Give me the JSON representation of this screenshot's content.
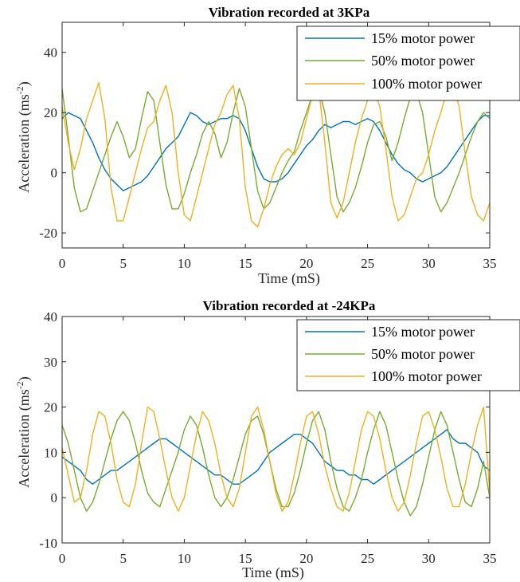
{
  "chart_data": [
    {
      "type": "line",
      "title": "Vibration recorded at 3KPa",
      "xlabel": "Time (mS)",
      "ylabel": "Acceleration (ms",
      "ylabel_sup": "-2",
      "ylabel_close": ")",
      "xlim": [
        0,
        35
      ],
      "ylim": [
        -25,
        50
      ],
      "xticks": [
        0,
        5,
        10,
        15,
        20,
        25,
        30,
        35
      ],
      "xtick_labels": [
        "0",
        "5",
        "10",
        "15",
        "20",
        "25",
        "30",
        "35"
      ],
      "yticks": [
        -20,
        0,
        20,
        40
      ],
      "ytick_labels": [
        "-20",
        "0",
        "20",
        "40"
      ],
      "grid": false,
      "legend_position": "top-right",
      "series": [
        {
          "name": "15% motor power",
          "color": "#0072BD",
          "x": [
            0,
            0.5,
            1,
            1.5,
            2,
            2.5,
            3,
            3.5,
            4,
            4.5,
            5,
            5.5,
            6,
            6.5,
            7,
            7.5,
            8,
            8.5,
            9,
            9.5,
            10,
            10.5,
            11,
            11.5,
            12,
            12.5,
            13,
            13.5,
            14,
            14.5,
            15,
            15.5,
            16,
            16.5,
            17,
            17.5,
            18,
            18.5,
            19,
            19.5,
            20,
            20.5,
            21,
            21.5,
            22,
            22.5,
            23,
            23.5,
            24,
            24.5,
            25,
            25.5,
            26,
            26.5,
            27,
            27.5,
            28,
            28.5,
            29,
            29.5,
            30,
            30.5,
            31,
            31.5,
            32,
            32.5,
            33,
            33.5,
            34,
            34.5,
            35
          ],
          "y": [
            18,
            20,
            19,
            18,
            14,
            10,
            5,
            1,
            -2,
            -4,
            -6,
            -5,
            -4,
            -3,
            -1,
            2,
            5,
            8,
            10,
            12,
            16,
            20,
            19,
            17,
            16,
            17,
            18,
            18,
            19,
            18,
            14,
            8,
            2,
            -2,
            -3,
            -3,
            -2,
            0,
            3,
            6,
            9,
            11,
            14,
            16,
            15,
            16,
            17,
            17,
            16,
            17,
            18,
            17,
            14,
            10,
            6,
            3,
            1,
            0,
            -2,
            -3,
            -2,
            -1,
            0,
            2,
            5,
            8,
            11,
            14,
            17,
            19,
            19
          ]
        },
        {
          "name": "50% motor power",
          "color": "#77AC30",
          "x": [
            0,
            0.5,
            1,
            1.5,
            2,
            2.5,
            3,
            3.5,
            4,
            4.5,
            5,
            5.5,
            6,
            6.5,
            7,
            7.5,
            8,
            8.5,
            9,
            9.5,
            10,
            10.5,
            11,
            11.5,
            12,
            12.5,
            13,
            13.5,
            14,
            14.5,
            15,
            15.5,
            16,
            16.5,
            17,
            17.5,
            18,
            18.5,
            19,
            19.5,
            20,
            20.5,
            21,
            21.5,
            22,
            22.5,
            23,
            23.5,
            24,
            24.5,
            25,
            25.5,
            26,
            26.5,
            27,
            27.5,
            28,
            28.5,
            29,
            29.5,
            30,
            30.5,
            31,
            31.5,
            32,
            32.5,
            33,
            33.5,
            34,
            34.5,
            35
          ],
          "y": [
            28,
            12,
            -5,
            -13,
            -12,
            -6,
            0,
            6,
            12,
            17,
            12,
            5,
            8,
            18,
            27,
            24,
            10,
            -4,
            -12,
            -12,
            -7,
            0,
            6,
            13,
            17,
            13,
            5,
            10,
            20,
            28,
            22,
            8,
            -6,
            -12,
            -10,
            -5,
            0,
            4,
            7,
            14,
            20,
            26,
            28,
            20,
            6,
            -8,
            -13,
            -10,
            -5,
            2,
            10,
            16,
            17,
            12,
            4,
            10,
            18,
            25,
            27,
            20,
            6,
            -8,
            -13,
            -10,
            -5,
            0,
            6,
            12,
            17,
            20,
            18
          ]
        },
        {
          "name": "100% motor power",
          "color": "#EDB120",
          "x": [
            0,
            0.5,
            1,
            1.5,
            2,
            2.5,
            3,
            3.5,
            4,
            4.5,
            5,
            5.5,
            6,
            6.5,
            7,
            7.5,
            8,
            8.5,
            9,
            9.5,
            10,
            10.5,
            11,
            11.5,
            12,
            12.5,
            13,
            13.5,
            14,
            14.5,
            15,
            15.5,
            16,
            16.5,
            17,
            17.5,
            18,
            18.5,
            19,
            19.5,
            20,
            20.5,
            21,
            21.5,
            22,
            22.5,
            23,
            23.5,
            24,
            24.5,
            25,
            25.5,
            26,
            26.5,
            27,
            27.5,
            28,
            28.5,
            29,
            29.5,
            30,
            30.5,
            31,
            31.5,
            32,
            32.5,
            33,
            33.5,
            34,
            34.5,
            35
          ],
          "y": [
            22,
            10,
            1,
            8,
            18,
            24,
            30,
            18,
            -5,
            -16,
            -16,
            -8,
            0,
            8,
            15,
            17,
            24,
            29,
            20,
            0,
            -14,
            -16,
            -8,
            0,
            8,
            16,
            20,
            26,
            29,
            18,
            -5,
            -16,
            -18,
            -12,
            -4,
            2,
            6,
            8,
            6,
            10,
            18,
            26,
            28,
            10,
            -10,
            -15,
            -10,
            0,
            10,
            18,
            24,
            28,
            22,
            8,
            -8,
            -16,
            -14,
            -8,
            -2,
            0,
            6,
            14,
            20,
            27,
            29,
            22,
            6,
            -8,
            -14,
            -16,
            -10
          ]
        }
      ]
    },
    {
      "type": "line",
      "title": "Vibration recorded at -24KPa",
      "xlabel": "Time (mS)",
      "ylabel": "Acceleration (ms",
      "ylabel_sup": "-2",
      "ylabel_close": ")",
      "xlim": [
        0,
        35
      ],
      "ylim": [
        -10,
        40
      ],
      "xticks": [
        0,
        5,
        10,
        15,
        20,
        25,
        30,
        35
      ],
      "xtick_labels": [
        "0",
        "5",
        "10",
        "15",
        "20",
        "25",
        "30",
        "35"
      ],
      "yticks": [
        -10,
        0,
        10,
        20,
        30,
        40
      ],
      "ytick_labels": [
        "-10",
        "0",
        "10",
        "20",
        "30",
        "40"
      ],
      "grid": false,
      "legend_position": "top-right",
      "series": [
        {
          "name": "15% motor power",
          "color": "#0072BD",
          "x": [
            0,
            0.5,
            1,
            1.5,
            2,
            2.5,
            3,
            3.5,
            4,
            4.5,
            5,
            5.5,
            6,
            6.5,
            7,
            7.5,
            8,
            8.5,
            9,
            9.5,
            10,
            10.5,
            11,
            11.5,
            12,
            12.5,
            13,
            13.5,
            14,
            14.5,
            15,
            15.5,
            16,
            16.5,
            17,
            17.5,
            18,
            18.5,
            19,
            19.5,
            20,
            20.5,
            21,
            21.5,
            22,
            22.5,
            23,
            23.5,
            24,
            24.5,
            25,
            25.5,
            26,
            26.5,
            27,
            27.5,
            28,
            28.5,
            29,
            29.5,
            30,
            30.5,
            31,
            31.5,
            32,
            32.5,
            33,
            33.5,
            34,
            34.5,
            35
          ],
          "y": [
            9,
            8,
            7,
            6,
            4,
            3,
            4,
            5,
            6,
            6,
            7,
            8,
            9,
            10,
            11,
            12,
            13,
            13,
            12,
            11,
            10,
            9,
            8,
            7,
            6,
            5,
            5,
            4,
            3,
            3,
            4,
            5,
            6,
            8,
            10,
            11,
            12,
            13,
            14,
            14,
            13,
            12,
            10,
            8,
            7,
            6,
            6,
            5,
            5,
            4,
            4,
            3,
            4,
            5,
            6,
            7,
            8,
            9,
            10,
            11,
            12,
            13,
            14,
            15,
            13,
            12,
            12,
            11,
            10,
            7,
            6
          ]
        },
        {
          "name": "50% motor power",
          "color": "#77AC30",
          "x": [
            0,
            0.5,
            1,
            1.5,
            2,
            2.5,
            3,
            3.5,
            4,
            4.5,
            5,
            5.5,
            6,
            6.5,
            7,
            7.5,
            8,
            8.5,
            9,
            9.5,
            10,
            10.5,
            11,
            11.5,
            12,
            12.5,
            13,
            13.5,
            14,
            14.5,
            15,
            15.5,
            16,
            16.5,
            17,
            17.5,
            18,
            18.5,
            19,
            19.5,
            20,
            20.5,
            21,
            21.5,
            22,
            22.5,
            23,
            23.5,
            24,
            24.5,
            25,
            25.5,
            26,
            26.5,
            27,
            27.5,
            28,
            28.5,
            29,
            29.5,
            30,
            30.5,
            31,
            31.5,
            32,
            32.5,
            33,
            33.5,
            34,
            34.5,
            35
          ],
          "y": [
            16,
            12,
            6,
            0,
            -3,
            -1,
            3,
            8,
            13,
            17,
            19,
            17,
            12,
            6,
            1,
            -1,
            -2,
            2,
            6,
            10,
            15,
            18,
            16,
            11,
            5,
            0,
            -2,
            0,
            4,
            9,
            14,
            17,
            18,
            14,
            8,
            2,
            -2,
            -2,
            1,
            6,
            12,
            17,
            19,
            15,
            8,
            2,
            -2,
            -3,
            0,
            4,
            10,
            15,
            19,
            16,
            10,
            4,
            -1,
            -4,
            -2,
            3,
            9,
            15,
            19,
            16,
            10,
            4,
            -1,
            -2,
            2,
            8,
            0
          ]
        },
        {
          "name": "100% motor power",
          "color": "#EDB120",
          "x": [
            0,
            0.5,
            1,
            1.5,
            2,
            2.5,
            3,
            3.5,
            4,
            4.5,
            5,
            5.5,
            6,
            6.5,
            7,
            7.5,
            8,
            8.5,
            9,
            9.5,
            10,
            10.5,
            11,
            11.5,
            12,
            12.5,
            13,
            13.5,
            14,
            14.5,
            15,
            15.5,
            16,
            16.5,
            17,
            17.5,
            18,
            18.5,
            19,
            19.5,
            20,
            20.5,
            21,
            21.5,
            22,
            22.5,
            23,
            23.5,
            24,
            24.5,
            25,
            25.5,
            26,
            26.5,
            27,
            27.5,
            28,
            28.5,
            29,
            29.5,
            30,
            30.5,
            31,
            31.5,
            32,
            32.5,
            33,
            33.5,
            34,
            34.5,
            35
          ],
          "y": [
            11,
            5,
            -1,
            0,
            6,
            14,
            19,
            18,
            12,
            4,
            -1,
            -2,
            3,
            12,
            20,
            19,
            13,
            6,
            0,
            -3,
            0,
            7,
            14,
            19,
            17,
            12,
            5,
            0,
            -2,
            2,
            10,
            18,
            20,
            15,
            8,
            1,
            -3,
            -1,
            5,
            12,
            18,
            19,
            14,
            7,
            2,
            -2,
            -3,
            1,
            8,
            15,
            19,
            18,
            13,
            6,
            0,
            -3,
            -1,
            5,
            12,
            18,
            19,
            15,
            9,
            2,
            -2,
            -2,
            3,
            10,
            16,
            20,
            1
          ]
        }
      ]
    }
  ]
}
